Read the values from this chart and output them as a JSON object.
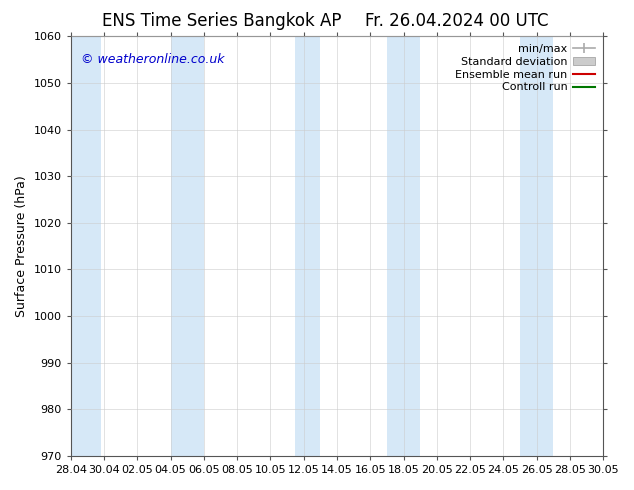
{
  "title_left": "ENS Time Series Bangkok AP",
  "title_right": "Fr. 26.04.2024 00 UTC",
  "ylabel": "Surface Pressure (hPa)",
  "ylim": [
    970,
    1060
  ],
  "yticks": [
    970,
    980,
    990,
    1000,
    1010,
    1020,
    1030,
    1040,
    1050,
    1060
  ],
  "xtick_labels": [
    "28.04",
    "30.04",
    "02.05",
    "04.05",
    "06.05",
    "08.05",
    "10.05",
    "12.05",
    "14.05",
    "16.05",
    "18.05",
    "20.05",
    "22.05",
    "24.05",
    "26.05",
    "28.05",
    "30.05"
  ],
  "num_xticks": 17,
  "xlim": [
    0,
    16
  ],
  "band_color": "#d6e8f7",
  "background_color": "#ffffff",
  "watermark": "© weatheronline.co.uk",
  "watermark_color": "#0000cc",
  "title_fontsize": 12,
  "axis_fontsize": 9,
  "tick_fontsize": 8,
  "legend_fontsize": 8,
  "minmax_color": "#aaaaaa",
  "std_color": "#cccccc",
  "ensemble_color": "#cc0000",
  "control_color": "#007700"
}
